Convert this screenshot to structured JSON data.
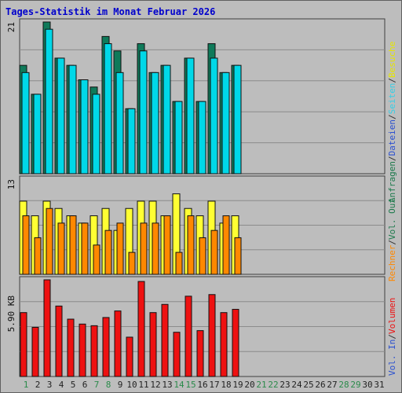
{
  "title": "Tages-Statistik im Monat Februar 2026",
  "colors": {
    "background": "#bdbdbd",
    "grid": "#8c8c8c",
    "anfragen": "#0f7a5a",
    "dateien": "#00d8e8",
    "seiten": "#36cfe6",
    "besuche": "#ffff33",
    "rechner": "#ff8800",
    "volumen": "#ee1111",
    "vol_in": "#2a50d0",
    "vol_out": "#1d7a4c",
    "weekday": "#222222",
    "weekend": "#2a8a4a"
  },
  "chart_data": {
    "type": "bar",
    "categories": [
      "1",
      "2",
      "3",
      "4",
      "5",
      "6",
      "7",
      "8",
      "9",
      "10",
      "11",
      "12",
      "13",
      "14",
      "15",
      "16",
      "17",
      "18",
      "19",
      "20",
      "21",
      "22",
      "23",
      "24",
      "25",
      "26",
      "27",
      "28",
      "29",
      "30",
      "31"
    ],
    "weekend_days": [
      "1",
      "7",
      "8",
      "14",
      "15",
      "21",
      "22",
      "28",
      "29"
    ],
    "panels": [
      {
        "id": "hits",
        "max_label": "21",
        "ylim": [
          0,
          21
        ],
        "series": [
          {
            "name": "Anfragen",
            "values": [
              15,
              11,
              21,
              16,
              15,
              13,
              12,
              19,
              17,
              9,
              18,
              14,
              15,
              10,
              16,
              10,
              18,
              14,
              15
            ]
          },
          {
            "name": "Dateien",
            "values": [
              14,
              11,
              20,
              16,
              15,
              13,
              11,
              18,
              14,
              9,
              17,
              14,
              15,
              10,
              16,
              10,
              16,
              14,
              15
            ]
          }
        ]
      },
      {
        "id": "visits",
        "max_label": "13",
        "ylim": [
          0,
          13
        ],
        "series": [
          {
            "name": "Besuche",
            "values": [
              10,
              8,
              10,
              9,
              8,
              7,
              8,
              9,
              6,
              9,
              10,
              10,
              8,
              11,
              9,
              8,
              10,
              7,
              8
            ]
          },
          {
            "name": "Rechner",
            "values": [
              8,
              5,
              9,
              7,
              8,
              7,
              4,
              6,
              7,
              3,
              7,
              7,
              8,
              3,
              8,
              5,
              6,
              8,
              5
            ]
          }
        ]
      },
      {
        "id": "volume",
        "max_label": "5.90 KB",
        "ylim": [
          0,
          5.9
        ],
        "series": [
          {
            "name": "Volumen",
            "values": [
              3.9,
              3.0,
              5.9,
              4.3,
              3.5,
              3.2,
              3.1,
              3.6,
              4.0,
              2.4,
              5.8,
              3.9,
              4.4,
              2.7,
              4.9,
              2.8,
              5.0,
              3.9,
              4.1
            ]
          }
        ]
      }
    ],
    "right_legend": {
      "top": [
        {
          "text": "Anfragen",
          "color": "#1d7a4c"
        },
        {
          "text": "/",
          "color": "#333333"
        },
        {
          "text": "Dateien",
          "color": "#2a50d0"
        },
        {
          "text": "/",
          "color": "#333333"
        },
        {
          "text": "Seiten",
          "color": "#36cfe6"
        },
        {
          "text": "/",
          "color": "#333333"
        },
        {
          "text": "Besuche",
          "color": "#e6e600"
        }
      ],
      "middle": [
        {
          "text": "Rechner",
          "color": "#ff8800"
        },
        {
          "text": "/",
          "color": "#333333"
        },
        {
          "text": "Vol. Out",
          "color": "#1d7a4c"
        }
      ],
      "bottom": [
        {
          "text": "Vol. In",
          "color": "#2a50d0"
        },
        {
          "text": "/",
          "color": "#333333"
        },
        {
          "text": "Volumen",
          "color": "#ee1111"
        }
      ]
    }
  }
}
